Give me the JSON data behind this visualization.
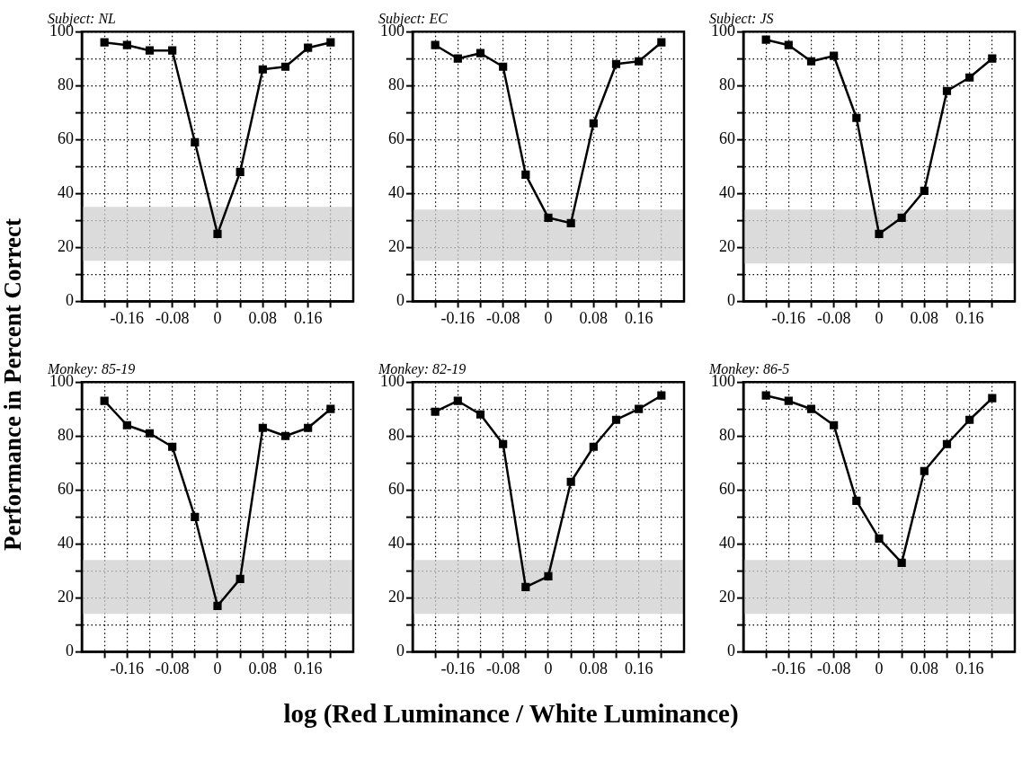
{
  "chart_data": [
    {
      "type": "line",
      "title": "Subject: NL",
      "ylabel": "Performance in Percent Correct",
      "x": [
        -0.2,
        -0.16,
        -0.12,
        -0.08,
        -0.04,
        0,
        0.04,
        0.08,
        0.12,
        0.16,
        0.2
      ],
      "series": [
        {
          "color": "#000000",
          "values": [
            96,
            95,
            93,
            93,
            59,
            25,
            48,
            86,
            87,
            94,
            96
          ]
        }
      ],
      "xlim": [
        -0.24,
        0.24
      ],
      "xticks": [
        {
          "value": -0.2,
          "label": null
        },
        -0.16,
        {
          "value": -0.12,
          "label": null
        },
        -0.08,
        {
          "value": -0.04,
          "label": null
        },
        0,
        {
          "value": 0.04,
          "label": null
        },
        0.08,
        {
          "value": 0.12,
          "label": null
        },
        0.16,
        {
          "value": 0.2,
          "label": null
        }
      ],
      "ylim": [
        0,
        100
      ],
      "yticks": [
        0,
        {
          "value": 10,
          "label": null
        },
        20,
        {
          "value": 30,
          "label": null
        },
        40,
        {
          "value": 50,
          "label": null
        },
        60,
        {
          "value": 70,
          "label": null
        },
        80,
        {
          "value": 90,
          "label": null
        },
        100
      ],
      "grid": true,
      "marker": "square",
      "line_style": "solid",
      "bands": [
        {
          "axis": "y",
          "from": 15,
          "to": 35,
          "color": "#cfcfcf"
        }
      ]
    },
    {
      "type": "line",
      "title": "Subject: EC",
      "x": [
        -0.2,
        -0.16,
        -0.12,
        -0.08,
        -0.04,
        0,
        0.04,
        0.08,
        0.12,
        0.16,
        0.2
      ],
      "series": [
        {
          "color": "#000000",
          "values": [
            95,
            90,
            92,
            87,
            47,
            31,
            29,
            66,
            88,
            89,
            96
          ]
        }
      ],
      "xlim": [
        -0.24,
        0.24
      ],
      "xticks": [
        {
          "value": -0.2,
          "label": null
        },
        -0.16,
        {
          "value": -0.12,
          "label": null
        },
        -0.08,
        {
          "value": -0.04,
          "label": null
        },
        0,
        {
          "value": 0.04,
          "label": null
        },
        0.08,
        {
          "value": 0.12,
          "label": null
        },
        0.16,
        {
          "value": 0.2,
          "label": null
        }
      ],
      "ylim": [
        0,
        100
      ],
      "yticks": [
        0,
        {
          "value": 10,
          "label": null
        },
        20,
        {
          "value": 30,
          "label": null
        },
        40,
        {
          "value": 50,
          "label": null
        },
        60,
        {
          "value": 70,
          "label": null
        },
        80,
        {
          "value": 90,
          "label": null
        },
        100
      ],
      "grid": true,
      "marker": "square",
      "line_style": "solid",
      "bands": [
        {
          "axis": "y",
          "from": 15,
          "to": 34,
          "color": "#cfcfcf"
        }
      ]
    },
    {
      "type": "line",
      "title": "Subject: JS",
      "x": [
        -0.2,
        -0.16,
        -0.12,
        -0.08,
        -0.04,
        0,
        0.04,
        0.08,
        0.12,
        0.16,
        0.2
      ],
      "series": [
        {
          "color": "#000000",
          "values": [
            97,
            95,
            89,
            91,
            68,
            25,
            31,
            41,
            78,
            83,
            90
          ]
        }
      ],
      "xlim": [
        -0.24,
        0.24
      ],
      "xticks": [
        {
          "value": -0.2,
          "label": null
        },
        -0.16,
        {
          "value": -0.12,
          "label": null
        },
        -0.08,
        {
          "value": -0.04,
          "label": null
        },
        0,
        {
          "value": 0.04,
          "label": null
        },
        0.08,
        {
          "value": 0.12,
          "label": null
        },
        0.16,
        {
          "value": 0.2,
          "label": null
        }
      ],
      "ylim": [
        0,
        100
      ],
      "yticks": [
        0,
        {
          "value": 10,
          "label": null
        },
        20,
        {
          "value": 30,
          "label": null
        },
        40,
        {
          "value": 50,
          "label": null
        },
        60,
        {
          "value": 70,
          "label": null
        },
        80,
        {
          "value": 90,
          "label": null
        },
        100
      ],
      "grid": true,
      "marker": "square",
      "line_style": "solid",
      "bands": [
        {
          "axis": "y",
          "from": 14,
          "to": 34,
          "color": "#cfcfcf"
        }
      ]
    },
    {
      "type": "line",
      "title": "Monkey: 85-19",
      "x": [
        -0.2,
        -0.16,
        -0.12,
        -0.08,
        -0.04,
        0,
        0.04,
        0.08,
        0.12,
        0.16,
        0.2
      ],
      "series": [
        {
          "color": "#000000",
          "values": [
            93,
            84,
            81,
            76,
            50,
            17,
            27,
            83,
            80,
            83,
            90
          ]
        }
      ],
      "xlim": [
        -0.24,
        0.24
      ],
      "xticks": [
        {
          "value": -0.2,
          "label": null
        },
        -0.16,
        {
          "value": -0.12,
          "label": null
        },
        -0.08,
        {
          "value": -0.04,
          "label": null
        },
        0,
        {
          "value": 0.04,
          "label": null
        },
        0.08,
        {
          "value": 0.12,
          "label": null
        },
        0.16,
        {
          "value": 0.2,
          "label": null
        }
      ],
      "ylim": [
        0,
        100
      ],
      "yticks": [
        0,
        {
          "value": 10,
          "label": null
        },
        20,
        {
          "value": 30,
          "label": null
        },
        40,
        {
          "value": 50,
          "label": null
        },
        60,
        {
          "value": 70,
          "label": null
        },
        80,
        {
          "value": 90,
          "label": null
        },
        100
      ],
      "grid": true,
      "marker": "square",
      "line_style": "solid",
      "bands": [
        {
          "axis": "y",
          "from": 14,
          "to": 34,
          "color": "#cfcfcf"
        }
      ]
    },
    {
      "type": "line",
      "title": "Monkey: 82-19",
      "xlabel": "log (Red Luminance / White Luminance)",
      "x": [
        -0.2,
        -0.16,
        -0.12,
        -0.08,
        -0.04,
        0,
        0.04,
        0.08,
        0.12,
        0.16,
        0.2
      ],
      "series": [
        {
          "color": "#000000",
          "values": [
            89,
            93,
            88,
            77,
            24,
            28,
            63,
            76,
            86,
            90,
            95
          ]
        }
      ],
      "xlim": [
        -0.24,
        0.24
      ],
      "xticks": [
        {
          "value": -0.2,
          "label": null
        },
        -0.16,
        {
          "value": -0.12,
          "label": null
        },
        -0.08,
        {
          "value": -0.04,
          "label": null
        },
        0,
        {
          "value": 0.04,
          "label": null
        },
        0.08,
        {
          "value": 0.12,
          "label": null
        },
        0.16,
        {
          "value": 0.2,
          "label": null
        }
      ],
      "ylim": [
        0,
        100
      ],
      "yticks": [
        0,
        {
          "value": 10,
          "label": null
        },
        20,
        {
          "value": 30,
          "label": null
        },
        40,
        {
          "value": 50,
          "label": null
        },
        60,
        {
          "value": 70,
          "label": null
        },
        80,
        {
          "value": 90,
          "label": null
        },
        100
      ],
      "grid": true,
      "marker": "square",
      "line_style": "solid",
      "bands": [
        {
          "axis": "y",
          "from": 14,
          "to": 34,
          "color": "#cfcfcf"
        }
      ]
    },
    {
      "type": "line",
      "title": "Monkey: 86-5",
      "x": [
        -0.2,
        -0.16,
        -0.12,
        -0.08,
        -0.04,
        0,
        0.04,
        0.08,
        0.12,
        0.16,
        0.2
      ],
      "series": [
        {
          "color": "#000000",
          "values": [
            95,
            93,
            90,
            84,
            56,
            42,
            33,
            67,
            77,
            86,
            94
          ]
        }
      ],
      "xlim": [
        -0.24,
        0.24
      ],
      "xticks": [
        {
          "value": -0.2,
          "label": null
        },
        -0.16,
        {
          "value": -0.12,
          "label": null
        },
        -0.08,
        {
          "value": -0.04,
          "label": null
        },
        0,
        {
          "value": 0.04,
          "label": null
        },
        0.08,
        {
          "value": 0.12,
          "label": null
        },
        0.16,
        {
          "value": 0.2,
          "label": null
        }
      ],
      "ylim": [
        0,
        100
      ],
      "yticks": [
        0,
        {
          "value": 10,
          "label": null
        },
        20,
        {
          "value": 30,
          "label": null
        },
        40,
        {
          "value": 50,
          "label": null
        },
        60,
        {
          "value": 70,
          "label": null
        },
        80,
        {
          "value": 90,
          "label": null
        },
        100
      ],
      "grid": true,
      "marker": "square",
      "line_style": "solid",
      "bands": [
        {
          "axis": "y",
          "from": 14,
          "to": 34,
          "color": "#cfcfcf"
        }
      ]
    }
  ]
}
